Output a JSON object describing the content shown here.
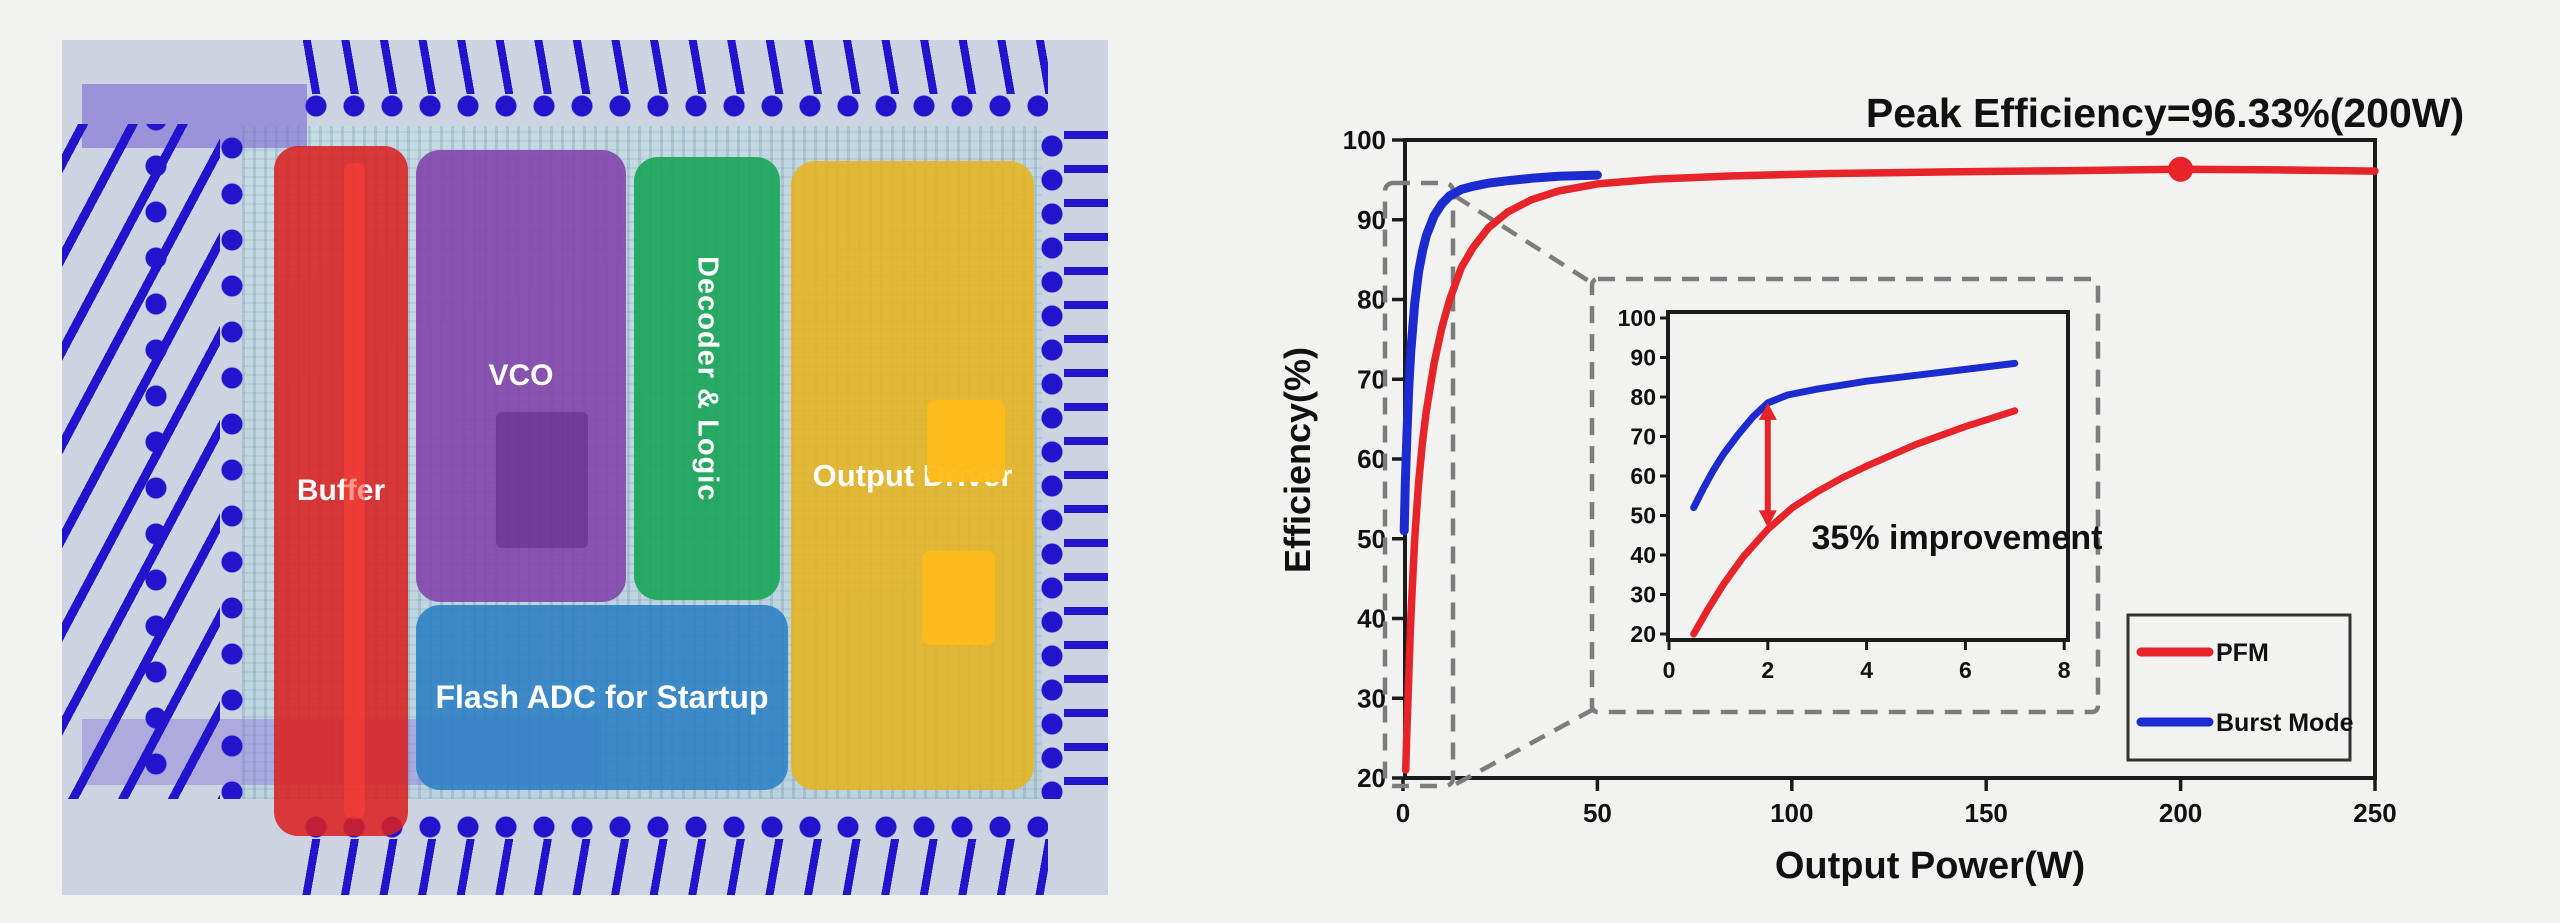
{
  "figure": {
    "background": "#f2f2f1"
  },
  "die_photo": {
    "pad_color": "#2214cd",
    "regions": [
      {
        "id": "buffer",
        "label": "Buffer",
        "color": "#d92020"
      },
      {
        "id": "vco",
        "label": "VCO",
        "color": "#8040a8"
      },
      {
        "id": "decoder_logic",
        "label": "Decoder & Logic",
        "color": "#12a352"
      },
      {
        "id": "output_driver",
        "label": "Output Driver",
        "color": "#e6b31e"
      },
      {
        "id": "flash_adc",
        "label": "Flash ADC for Startup",
        "color": "#2b7ec4"
      }
    ]
  },
  "chart_data": {
    "type": "line",
    "peak_annotation": "Peak Efficiency=96.33%(200W)",
    "xlabel": "Output Power(W)",
    "ylabel": "Efficiency(%)",
    "xlim": [
      0,
      250
    ],
    "ylim": [
      20,
      100
    ],
    "x_ticks": [
      0,
      50,
      100,
      150,
      200,
      250
    ],
    "y_ticks": [
      100,
      90,
      80,
      70,
      60,
      50,
      40,
      30,
      20
    ],
    "grid": false,
    "legend_position": "lower right",
    "legend": [
      "PFM",
      "Burst Mode"
    ],
    "peak_point": {
      "x": 200,
      "y": 96.33
    },
    "series": [
      {
        "name": "PFM",
        "color": "#e7242a",
        "x": [
          0.7,
          1,
          1.5,
          2,
          3,
          4,
          5,
          6,
          8,
          10,
          12,
          15,
          18,
          22,
          27,
          33,
          40,
          50,
          65,
          85,
          110,
          140,
          170,
          200,
          225,
          250
        ],
        "y": [
          21,
          26,
          33,
          40,
          50,
          57,
          62,
          66,
          72,
          76.5,
          80,
          84,
          86.5,
          89,
          91,
          92.5,
          93.6,
          94.5,
          95.1,
          95.5,
          95.8,
          96.0,
          96.15,
          96.33,
          96.25,
          96.1
        ]
      },
      {
        "name": "Burst Mode",
        "color": "#1c2bd0",
        "x": [
          0.3,
          0.6,
          1,
          1.5,
          2,
          3,
          4,
          5,
          6,
          8,
          10,
          12,
          15,
          18,
          22,
          27,
          33,
          40,
          50
        ],
        "y": [
          51,
          57,
          63,
          69,
          73.5,
          79.5,
          83.5,
          86,
          88,
          90.5,
          92,
          93,
          93.8,
          94.2,
          94.6,
          94.9,
          95.2,
          95.45,
          95.6
        ]
      }
    ],
    "inset": {
      "xlim": [
        0,
        8
      ],
      "ylim": [
        20,
        100
      ],
      "x_ticks": [
        0,
        2,
        4,
        6,
        8
      ],
      "y_ticks": [
        100,
        90,
        80,
        70,
        60,
        50,
        40,
        30,
        20
      ],
      "annotation": "35% improvement",
      "arrow": {
        "x": 2,
        "y_from": 47.5,
        "y_to": 78
      },
      "series": [
        {
          "name": "PFM",
          "color": "#e7242a",
          "x": [
            0.5,
            0.8,
            1.1,
            1.5,
            2,
            2.5,
            3,
            3.5,
            4,
            5,
            6,
            7
          ],
          "y": [
            20,
            26.5,
            32.5,
            39.5,
            46.5,
            52,
            56,
            59.5,
            62.5,
            68,
            72.5,
            76.5
          ]
        },
        {
          "name": "Burst Mode",
          "color": "#1c2bd0",
          "x": [
            0.5,
            0.7,
            0.9,
            1.1,
            1.4,
            1.7,
            2,
            2.4,
            3,
            4,
            5,
            6,
            7
          ],
          "y": [
            52,
            57,
            61.5,
            65.5,
            70.5,
            75,
            78.5,
            80.5,
            82,
            84,
            85.5,
            87,
            88.5
          ]
        }
      ]
    }
  }
}
